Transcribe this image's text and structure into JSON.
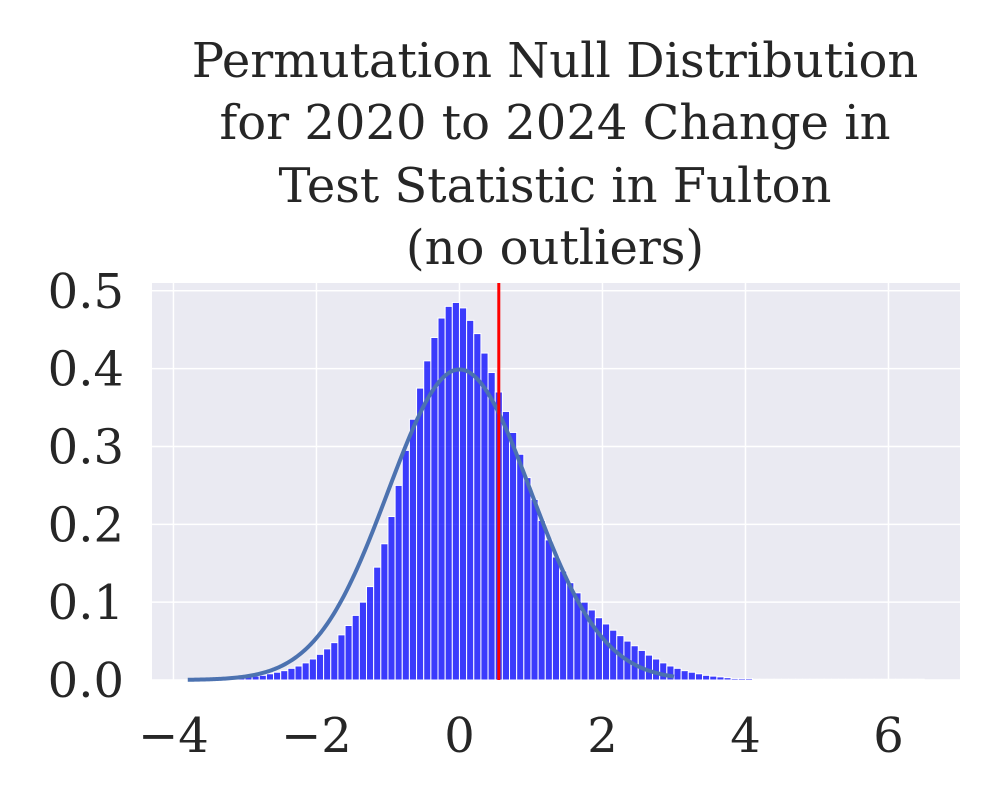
{
  "chart_data": {
    "type": "bar",
    "title_lines": [
      "Permutation Null Distribution",
      "for 2020 to 2024 Change in",
      "Test Statistic in Fulton",
      "(no outliers)"
    ],
    "xlabel": "",
    "ylabel": "",
    "xlim": [
      -4.3,
      7.0
    ],
    "ylim": [
      0,
      0.51
    ],
    "xticks": [
      -4,
      -2,
      0,
      2,
      4,
      6
    ],
    "xtick_labels": [
      "−4",
      "−2",
      "0",
      "2",
      "4",
      "6"
    ],
    "yticks": [
      0.0,
      0.1,
      0.2,
      0.3,
      0.4,
      0.5
    ],
    "ytick_labels": [
      "0.0",
      "0.1",
      "0.2",
      "0.3",
      "0.4",
      "0.5"
    ],
    "grid": true,
    "histogram": {
      "bin_start": -3.5,
      "bin_width": 0.1,
      "density": [
        0.001,
        0.001,
        0.002,
        0.002,
        0.003,
        0.004,
        0.005,
        0.006,
        0.008,
        0.01,
        0.012,
        0.015,
        0.018,
        0.022,
        0.027,
        0.033,
        0.04,
        0.048,
        0.058,
        0.07,
        0.083,
        0.1,
        0.12,
        0.145,
        0.175,
        0.21,
        0.25,
        0.295,
        0.335,
        0.375,
        0.41,
        0.44,
        0.465,
        0.48,
        0.485,
        0.478,
        0.462,
        0.445,
        0.42,
        0.395,
        0.37,
        0.345,
        0.318,
        0.29,
        0.26,
        0.232,
        0.205,
        0.18,
        0.158,
        0.14,
        0.125,
        0.112,
        0.1,
        0.09,
        0.08,
        0.072,
        0.064,
        0.057,
        0.05,
        0.044,
        0.038,
        0.032,
        0.027,
        0.022,
        0.018,
        0.015,
        0.012,
        0.01,
        0.008,
        0.006,
        0.005,
        0.004,
        0.003,
        0.002,
        0.002,
        0.002,
        0.001,
        0.001,
        0.001,
        0.001,
        0.001,
        0.001,
        0.001,
        0.001,
        0.001,
        0.001,
        0.001,
        0.001,
        0.001,
        0.001,
        0.001,
        0.001,
        0.001,
        0.001,
        0.001,
        0.001,
        0.001,
        0.001,
        0.001,
        0.001
      ],
      "color": "#0000ff"
    },
    "normal_curve": {
      "mean": 0,
      "sd": 1,
      "x_range": [
        -3.8,
        3.0
      ],
      "color": "#4c72b0"
    },
    "vline": {
      "x": 0.55,
      "color": "#ff0000"
    },
    "background": "#eaeaf2"
  }
}
